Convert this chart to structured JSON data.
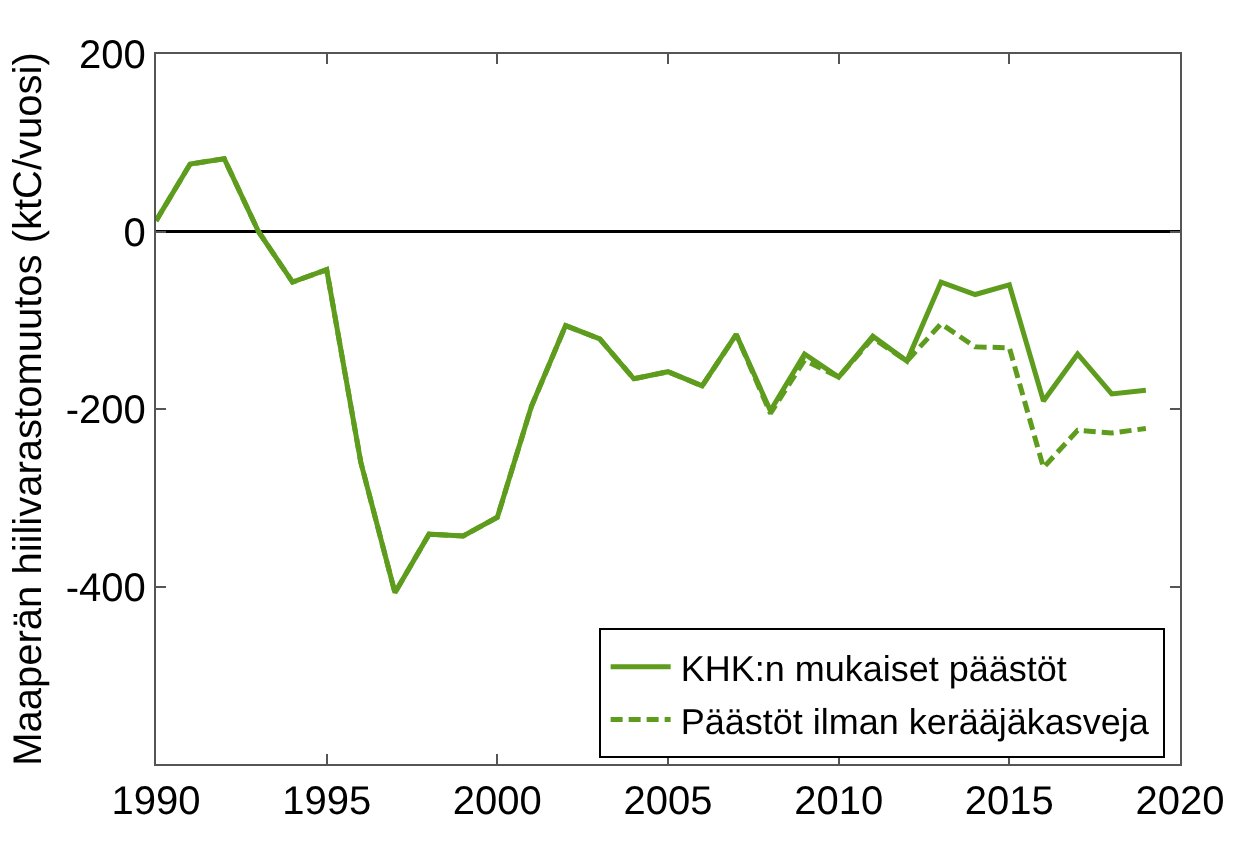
{
  "chart_data": {
    "type": "line",
    "ylabel": "Maaperän hiilivarastomuutos (ktC/vuosi)",
    "x": [
      1990,
      1991,
      1992,
      1993,
      1994,
      1995,
      1996,
      1997,
      1998,
      1999,
      2000,
      2001,
      2002,
      2003,
      2004,
      2005,
      2006,
      2007,
      2008,
      2009,
      2010,
      2011,
      2012,
      2013,
      2014,
      2015,
      2016,
      2017,
      2018,
      2019
    ],
    "series": [
      {
        "name": "KHK:n mukaiset päästöt",
        "color": "#5d9c1c",
        "line_style": "solid",
        "values": [
          12,
          76,
          82,
          0,
          -57,
          -43,
          -260,
          -407,
          -341,
          -343,
          -322,
          -197,
          -106,
          -121,
          -166,
          -158,
          -174,
          -116,
          -202,
          -138,
          -164,
          -118,
          -146,
          -57,
          -71,
          -60,
          -191,
          -138,
          -183,
          -179
        ]
      },
      {
        "name": "Päästöt ilman kerääjäkasveja",
        "color": "#5d9c1c",
        "line_style": "dashed",
        "values": [
          12,
          76,
          82,
          0,
          -57,
          -43,
          -260,
          -407,
          -341,
          -343,
          -322,
          -197,
          -106,
          -121,
          -166,
          -158,
          -174,
          -116,
          -205,
          -145,
          -164,
          -120,
          -146,
          -104,
          -130,
          -131,
          -266,
          -224,
          -227,
          -222
        ]
      }
    ],
    "xlim": [
      1990,
      2020
    ],
    "xticks": [
      1990,
      1995,
      2000,
      2005,
      2010,
      2015,
      2020
    ],
    "ylim": [
      -600,
      200
    ],
    "yticks": [
      -400,
      -200,
      0,
      200
    ],
    "ref_lines": [
      {
        "axis": "y",
        "value": 0,
        "color": "#000000"
      }
    ],
    "legend": "bottom right"
  }
}
